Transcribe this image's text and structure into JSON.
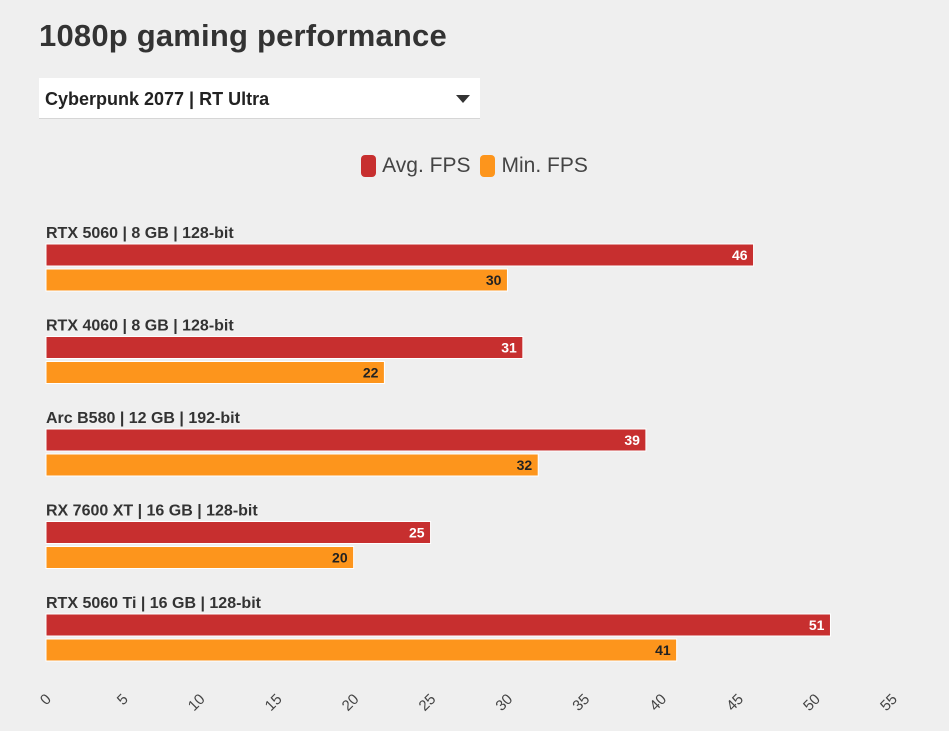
{
  "page": {
    "title": "1080p gaming performance",
    "selector": {
      "selected": "Cyberpunk 2077 | RT Ultra"
    }
  },
  "chart_data": {
    "type": "bar",
    "orientation": "horizontal",
    "title": "1080p gaming performance",
    "categories": [
      "RTX 5060 | 8 GB | 128-bit",
      "RTX 4060 | 8 GB | 128-bit",
      "Arc B580 | 12 GB | 192-bit",
      "RX 7600 XT | 16 GB | 128-bit",
      "RTX 5060 Ti | 16 GB | 128-bit"
    ],
    "series": [
      {
        "name": "Avg. FPS",
        "color": "#c72f2f",
        "label_color": "#ffffff",
        "values": [
          46,
          31,
          39,
          25,
          51
        ]
      },
      {
        "name": "Min. FPS",
        "color": "#fd951c",
        "label_color": "#222222",
        "values": [
          30,
          22,
          32,
          20,
          41
        ]
      }
    ],
    "xlim": [
      0,
      55
    ],
    "xticks": [
      0,
      5,
      10,
      15,
      20,
      25,
      30,
      35,
      40,
      45,
      50,
      55
    ],
    "legend_position": "top-center",
    "grid": false
  }
}
